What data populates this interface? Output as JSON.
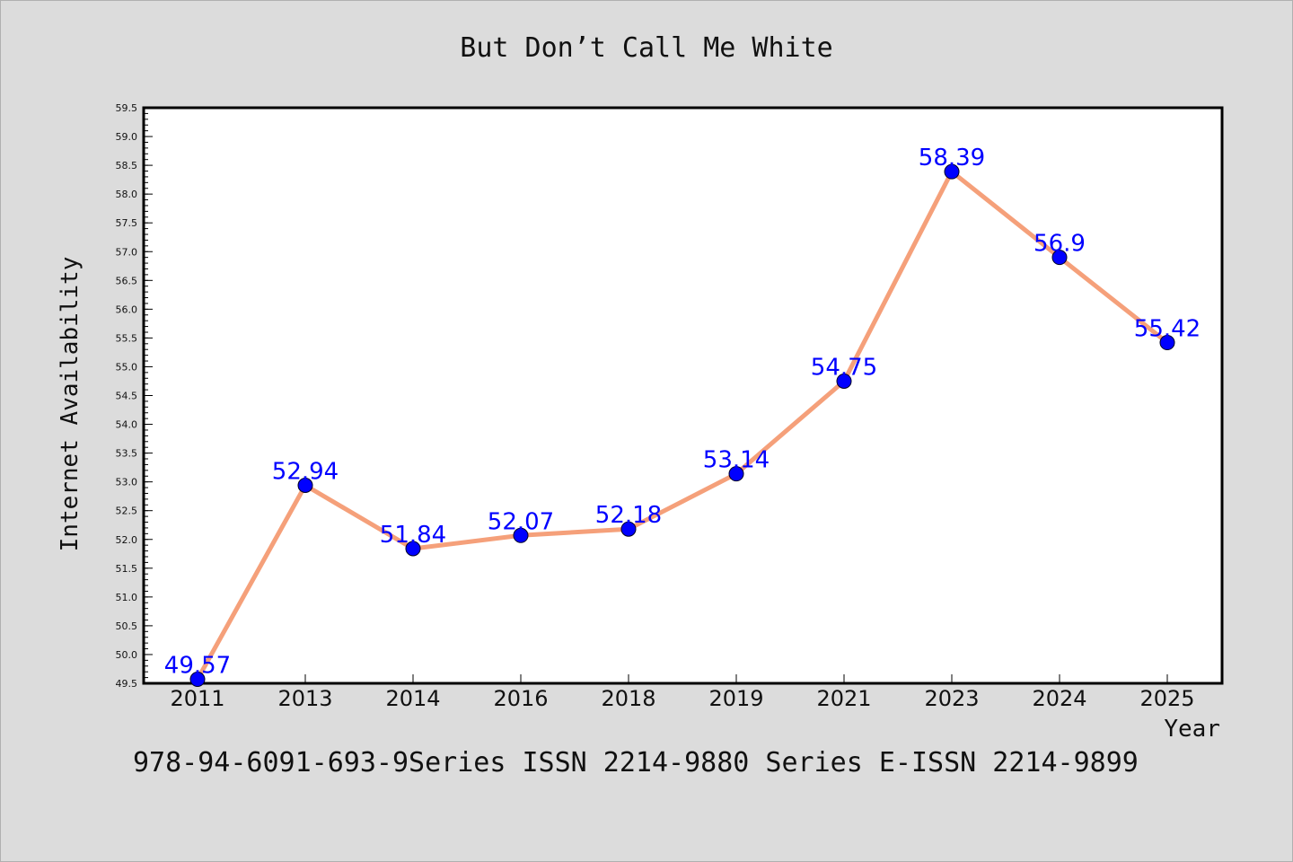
{
  "colors": {
    "background": "#dcdcdc",
    "plot_background": "#ffffff",
    "line": "#f5a07a",
    "marker": "#0000ff",
    "label": "#0000ff"
  },
  "footer": "978-94-6091-693-9Series ISSN 2214-9880 Series E-ISSN 2214-9899",
  "chart_data": {
    "type": "line",
    "title": "But Don’t Call Me White",
    "xlabel": "Year",
    "ylabel": "Internet Availability",
    "categories": [
      "2011",
      "2013",
      "2014",
      "2016",
      "2018",
      "2019",
      "2021",
      "2023",
      "2024",
      "2025"
    ],
    "values": [
      49.57,
      52.94,
      51.84,
      52.07,
      52.18,
      53.14,
      54.75,
      58.39,
      56.9,
      55.42
    ],
    "data_labels": [
      "49.57",
      "52.94",
      "51.84",
      "52.07",
      "52.18",
      "53.14",
      "54.75",
      "58.39",
      "56.9",
      "55.42"
    ],
    "ylim": [
      49.5,
      59.5
    ],
    "y_ticks": [
      "49.5",
      "50.0",
      "50.5",
      "51.0",
      "51.5",
      "52.0",
      "52.5",
      "53.0",
      "53.5",
      "54.0",
      "54.5",
      "55.0",
      "55.5",
      "56.0",
      "56.5",
      "57.0",
      "57.5",
      "58.0",
      "58.5",
      "59.0",
      "59.5"
    ],
    "grid": false,
    "legend": "none"
  }
}
